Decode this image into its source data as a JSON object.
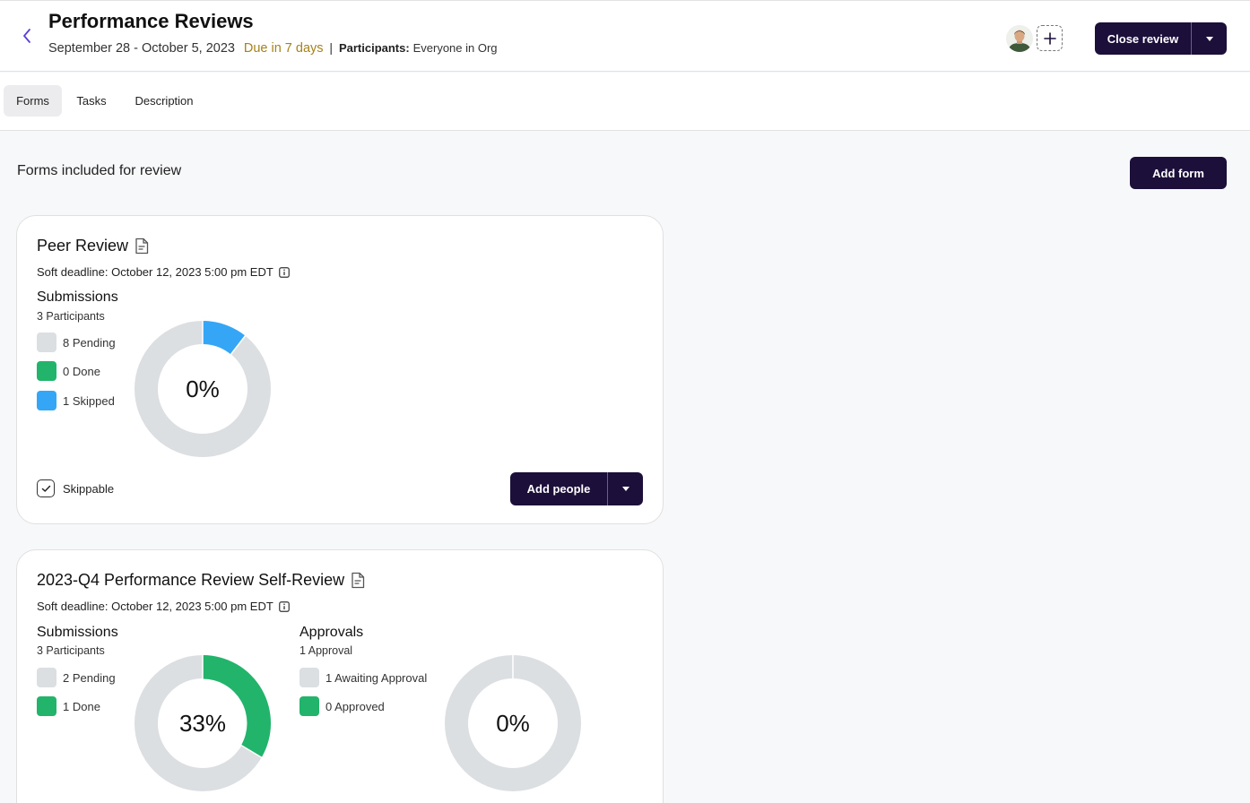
{
  "header": {
    "title": "Performance Reviews",
    "dates": "September 28 - October 5, 2023",
    "due": "Due in 7 days",
    "separator": "|",
    "participants_label": "Participants:",
    "participants_value": "Everyone in Org",
    "close_label": "Close review"
  },
  "tabs": [
    {
      "label": "Forms",
      "active": true
    },
    {
      "label": "Tasks",
      "active": false
    },
    {
      "label": "Description",
      "active": false
    }
  ],
  "section_title": "Forms included for review",
  "add_form_label": "Add form",
  "colors": {
    "pending": "#dcdfe1",
    "done": "#22b46b",
    "skipped": "#35a6f5",
    "primary": "#1c0f3a",
    "due": "#a6821b"
  },
  "forms": [
    {
      "title": "Peer Review",
      "deadline": "Soft deadline: October 12, 2023 5:00 pm EDT",
      "submissions": {
        "heading": "Submissions",
        "participants": "3 Participants",
        "legend": [
          {
            "label": "8 Pending",
            "kind": "pending",
            "count": 8
          },
          {
            "label": "0 Done",
            "kind": "done",
            "count": 0
          },
          {
            "label": "1 Skipped",
            "kind": "skipped",
            "count": 1
          }
        ],
        "percent": "0%"
      },
      "skippable_label": "Skippable",
      "skippable_checked": true,
      "add_people_label": "Add people"
    },
    {
      "title": "2023-Q4 Performance Review Self-Review",
      "deadline": "Soft deadline: October 12, 2023 5:00 pm EDT",
      "submissions": {
        "heading": "Submissions",
        "participants": "3 Participants",
        "legend": [
          {
            "label": "2 Pending",
            "kind": "pending",
            "count": 2
          },
          {
            "label": "1 Done",
            "kind": "done",
            "count": 1
          }
        ],
        "percent": "33%"
      },
      "approvals": {
        "heading": "Approvals",
        "count": "1 Approval",
        "legend": [
          {
            "label": "1 Awaiting Approval",
            "kind": "pending",
            "count": 1
          },
          {
            "label": "0 Approved",
            "kind": "done",
            "count": 0
          }
        ],
        "percent": "0%"
      }
    }
  ]
}
